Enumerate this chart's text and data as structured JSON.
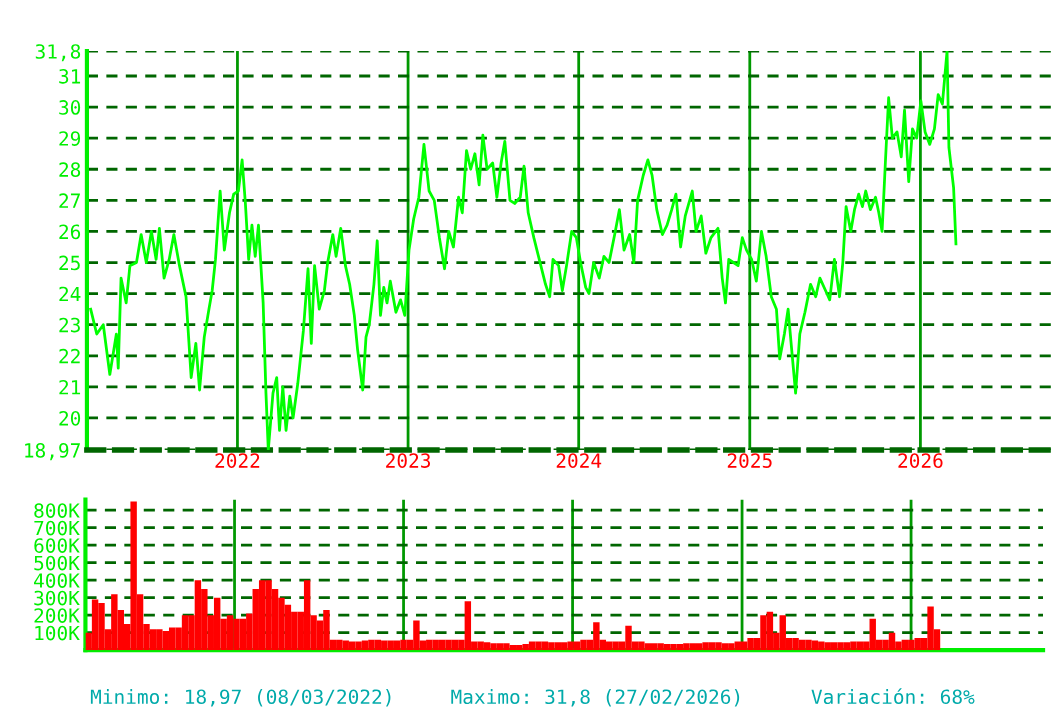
{
  "chart_data": [
    {
      "type": "line",
      "xlim": [
        "2021-02-13",
        "2026-10-13"
      ],
      "ylim": [
        18.97,
        31.8
      ],
      "yticks": [
        {
          "value": 18.97,
          "label": "18,97"
        },
        20,
        21,
        22,
        23,
        24,
        25,
        26,
        27,
        28,
        29,
        30,
        31,
        {
          "value": 31.8,
          "label": "31,8"
        }
      ],
      "xticks": [
        {
          "value": "2022-01-01",
          "label": "2022"
        },
        {
          "value": "2023-01-01",
          "label": "2023"
        },
        {
          "value": "2024-01-01",
          "label": "2024"
        },
        {
          "value": "2025-01-01",
          "label": "2025"
        },
        {
          "value": "2026-01-01",
          "label": "2026"
        }
      ],
      "grid": true,
      "series": [
        {
          "color": "#00ff00",
          "x": [
            "2021-02-21",
            "2021-03-06",
            "2021-03-20",
            "2021-04-03",
            "2021-04-17",
            "2021-04-21",
            "2021-04-27",
            "2021-05-08",
            "2021-05-16",
            "2021-05-30",
            "2021-06-09",
            "2021-06-20",
            "2021-07-01",
            "2021-07-11",
            "2021-07-18",
            "2021-07-28",
            "2021-08-08",
            "2021-08-18",
            "2021-08-30",
            "2021-09-13",
            "2021-09-24",
            "2021-10-04",
            "2021-10-12",
            "2021-10-22",
            "2021-11-01",
            "2021-11-08",
            "2021-11-15",
            "2021-11-25",
            "2021-12-04",
            "2021-12-15",
            "2021-12-24",
            "2022-01-03",
            "2022-01-11",
            "2022-01-18",
            "2022-01-25",
            "2022-02-01",
            "2022-02-08",
            "2022-02-15",
            "2022-02-25",
            "2022-03-03",
            "2022-03-08",
            "2022-03-18",
            "2022-03-26",
            "2022-04-01",
            "2022-04-08",
            "2022-04-15",
            "2022-04-23",
            "2022-04-30",
            "2022-05-10",
            "2022-05-22",
            "2022-06-01",
            "2022-06-08",
            "2022-06-15",
            "2022-06-25",
            "2022-07-06",
            "2022-07-13",
            "2022-07-24",
            "2022-07-31",
            "2022-08-10",
            "2022-08-20",
            "2022-08-29",
            "2022-09-08",
            "2022-09-15",
            "2022-09-26",
            "2022-10-03",
            "2022-10-10",
            "2022-10-20",
            "2022-10-27",
            "2022-11-03",
            "2022-11-10",
            "2022-11-17",
            "2022-11-24",
            "2022-12-06",
            "2022-12-16",
            "2022-12-25",
            "2023-01-03",
            "2023-01-13",
            "2023-01-24",
            "2023-02-04",
            "2023-02-15",
            "2023-02-26",
            "2023-03-09",
            "2023-03-20",
            "2023-03-29",
            "2023-04-08",
            "2023-04-19",
            "2023-04-27",
            "2023-05-06",
            "2023-05-15",
            "2023-05-24",
            "2023-06-02",
            "2023-06-10",
            "2023-06-19",
            "2023-07-01",
            "2023-07-10",
            "2023-07-19",
            "2023-07-27",
            "2023-08-07",
            "2023-08-17",
            "2023-08-29",
            "2023-09-06",
            "2023-09-15",
            "2023-09-27",
            "2023-10-12",
            "2023-10-22",
            "2023-10-31",
            "2023-11-07",
            "2023-11-19",
            "2023-11-27",
            "2023-12-06",
            "2023-12-17",
            "2023-12-27",
            "2024-01-05",
            "2024-01-16",
            "2024-01-23",
            "2024-02-02",
            "2024-02-14",
            "2024-02-24",
            "2024-03-06",
            "2024-03-18",
            "2024-03-28",
            "2024-04-07",
            "2024-04-19",
            "2024-04-28",
            "2024-05-06",
            "2024-05-18",
            "2024-05-28",
            "2024-06-06",
            "2024-06-16",
            "2024-06-28",
            "2024-07-08",
            "2024-07-18",
            "2024-07-27",
            "2024-08-06",
            "2024-08-16",
            "2024-08-31",
            "2024-09-08",
            "2024-09-19",
            "2024-09-29",
            "2024-10-10",
            "2024-10-25",
            "2024-11-03",
            "2024-11-10",
            "2024-11-17",
            "2024-11-27",
            "2024-12-07",
            "2024-12-16",
            "2024-12-25",
            "2025-01-05",
            "2025-01-15",
            "2025-01-26",
            "2025-02-05",
            "2025-02-16",
            "2025-02-27",
            "2025-03-06",
            "2025-03-16",
            "2025-03-24",
            "2025-03-31",
            "2025-04-09",
            "2025-04-18",
            "2025-04-29",
            "2025-05-11",
            "2025-05-22",
            "2025-05-31",
            "2025-06-12",
            "2025-06-21",
            "2025-07-01",
            "2025-07-12",
            "2025-07-19",
            "2025-07-26",
            "2025-08-05",
            "2025-08-13",
            "2025-08-22",
            "2025-08-30",
            "2025-09-06",
            "2025-09-16",
            "2025-09-27",
            "2025-10-04",
            "2025-10-11",
            "2025-10-18",
            "2025-10-25",
            "2025-11-02",
            "2025-11-12",
            "2025-11-21",
            "2025-11-28",
            "2025-12-07",
            "2025-12-15",
            "2025-12-24",
            "2026-01-02",
            "2026-01-11",
            "2026-01-21",
            "2026-01-31",
            "2026-02-08",
            "2026-02-17",
            "2026-02-27",
            "2026-03-03",
            "2026-03-13",
            "2026-03-18"
          ],
          "values": [
            23.5,
            22.7,
            23.0,
            21.4,
            22.7,
            21.6,
            24.5,
            23.7,
            24.9,
            25.0,
            25.9,
            25.0,
            26.0,
            25.1,
            26.1,
            24.5,
            25.1,
            25.9,
            24.9,
            23.9,
            21.3,
            22.4,
            20.9,
            22.6,
            23.5,
            24.1,
            25.1,
            27.3,
            25.4,
            26.6,
            27.2,
            27.3,
            28.3,
            26.9,
            25.1,
            26.2,
            25.2,
            26.2,
            23.7,
            20.8,
            18.97,
            20.8,
            21.3,
            19.6,
            21.0,
            19.6,
            20.7,
            20.0,
            21.1,
            22.8,
            24.8,
            22.4,
            24.9,
            23.5,
            24.1,
            25.0,
            25.9,
            25.2,
            26.1,
            24.9,
            24.3,
            23.3,
            22.2,
            20.9,
            22.6,
            23.0,
            24.3,
            25.7,
            23.3,
            24.2,
            23.7,
            24.4,
            23.4,
            23.8,
            23.3,
            25.4,
            26.4,
            27.1,
            28.8,
            27.3,
            27.0,
            25.8,
            24.8,
            26.0,
            25.5,
            27.1,
            26.6,
            28.6,
            28.0,
            28.5,
            27.5,
            29.1,
            28.0,
            28.2,
            27.1,
            28.2,
            28.9,
            27.0,
            26.9,
            27.1,
            28.1,
            26.6,
            25.8,
            24.9,
            24.3,
            23.9,
            25.1,
            24.9,
            24.1,
            24.9,
            26.0,
            25.8,
            25.0,
            24.2,
            24.0,
            25.0,
            24.5,
            25.2,
            25.0,
            25.9,
            26.7,
            25.4,
            25.9,
            25.0,
            27.0,
            27.8,
            28.3,
            27.8,
            26.7,
            25.9,
            26.2,
            26.7,
            27.2,
            25.5,
            26.5,
            27.3,
            26.0,
            26.5,
            25.3,
            25.8,
            26.1,
            24.5,
            23.7,
            25.1,
            25.0,
            24.9,
            25.8,
            25.4,
            25.1,
            24.4,
            26.0,
            25.2,
            23.9,
            23.5,
            21.9,
            22.7,
            23.5,
            22.3,
            20.8,
            22.7,
            23.4,
            24.3,
            23.9,
            24.5,
            24.1,
            23.8,
            25.1,
            23.9,
            25.0,
            26.8,
            26.0,
            26.7,
            27.2,
            26.8,
            27.3,
            26.7,
            27.1,
            26.6,
            26.0,
            28.2,
            30.3,
            29.0,
            29.2,
            28.4,
            29.9,
            27.6,
            29.3,
            29.0,
            30.2,
            29.2,
            28.8,
            29.3,
            30.4,
            30.1,
            31.8,
            28.7,
            27.4,
            25.6
          ]
        }
      ]
    },
    {
      "type": "bar",
      "ylim": [
        0,
        860000
      ],
      "categories": [
        null,
        null,
        null,
        null,
        null,
        null,
        null,
        null,
        null,
        null,
        null,
        null,
        null,
        null,
        null,
        null,
        null,
        null,
        null,
        null,
        null,
        null,
        null,
        null,
        null,
        null,
        null,
        null,
        null,
        null,
        null,
        null,
        null,
        null,
        null,
        null,
        null,
        null,
        null,
        null,
        null,
        null,
        null,
        null,
        null,
        null,
        null,
        null,
        null,
        null,
        null,
        null,
        null,
        null,
        null,
        null,
        null,
        null,
        null,
        null,
        null,
        null,
        null,
        null,
        null,
        null,
        null,
        null,
        null,
        null,
        null,
        null,
        null,
        null,
        null,
        null,
        null,
        null,
        null,
        null,
        null,
        null,
        null,
        null,
        null,
        null,
        null,
        null,
        null,
        null,
        null,
        null,
        null,
        null,
        null,
        null,
        null,
        null,
        null,
        null,
        null,
        null,
        null,
        null,
        null,
        null,
        null,
        null,
        null,
        null,
        null,
        null,
        null,
        null,
        null,
        null,
        null,
        null,
        null,
        null,
        null,
        null,
        null,
        null,
        null,
        null,
        null,
        null,
        null,
        null,
        null,
        null,
        null,
        null,
        null,
        null,
        null,
        null,
        null,
        null,
        null,
        null,
        null,
        null,
        null,
        null,
        null,
        null,
        null
      ],
      "yticks": [
        {
          "value": 100000,
          "label": "100K"
        },
        {
          "value": 200000,
          "label": "200K"
        },
        {
          "value": 300000,
          "label": "300K"
        },
        {
          "value": 400000,
          "label": "400K"
        },
        {
          "value": 500000,
          "label": "500K"
        },
        {
          "value": 600000,
          "label": "600K"
        },
        {
          "value": 700000,
          "label": "700K"
        },
        {
          "value": 800000,
          "label": "800K"
        }
      ],
      "tick_labels": "y",
      "grid": true,
      "annotations": [
        "Minimo: 18,97 (08/03/2022)",
        "Maximo: 31,8 (27/02/2026)",
        "Variación: 68%"
      ],
      "series": [
        {
          "color": "#ff0000",
          "values": [
            100000,
            290000,
            270000,
            120000,
            320000,
            230000,
            150000,
            850000,
            320000,
            150000,
            120000,
            120000,
            110000,
            130000,
            130000,
            200000,
            200000,
            400000,
            350000,
            200000,
            300000,
            180000,
            200000,
            180000,
            180000,
            210000,
            350000,
            400000,
            400000,
            350000,
            300000,
            260000,
            220000,
            220000,
            400000,
            200000,
            170000,
            230000,
            60000,
            60000,
            55000,
            50000,
            50000,
            55000,
            60000,
            60000,
            55000,
            55000,
            55000,
            60000,
            60000,
            170000,
            55000,
            60000,
            60000,
            60000,
            60000,
            60000,
            60000,
            280000,
            50000,
            50000,
            45000,
            40000,
            40000,
            40000,
            30000,
            30000,
            35000,
            50000,
            50000,
            50000,
            45000,
            45000,
            45000,
            50000,
            50000,
            60000,
            60000,
            160000,
            60000,
            50000,
            50000,
            50000,
            140000,
            50000,
            50000,
            40000,
            40000,
            40000,
            35000,
            35000,
            35000,
            40000,
            40000,
            40000,
            45000,
            45000,
            45000,
            40000,
            40000,
            50000,
            50000,
            70000,
            70000,
            200000,
            220000,
            100000,
            200000,
            70000,
            70000,
            60000,
            60000,
            55000,
            50000,
            45000,
            45000,
            45000,
            45000,
            50000,
            50000,
            50000,
            180000,
            60000,
            60000,
            100000,
            50000,
            60000,
            60000,
            70000,
            70000,
            250000,
            120000,
            null,
            null,
            null,
            null,
            null,
            null,
            null,
            null,
            null,
            null,
            null,
            null,
            null,
            null,
            null,
            null
          ]
        }
      ]
    }
  ]
}
